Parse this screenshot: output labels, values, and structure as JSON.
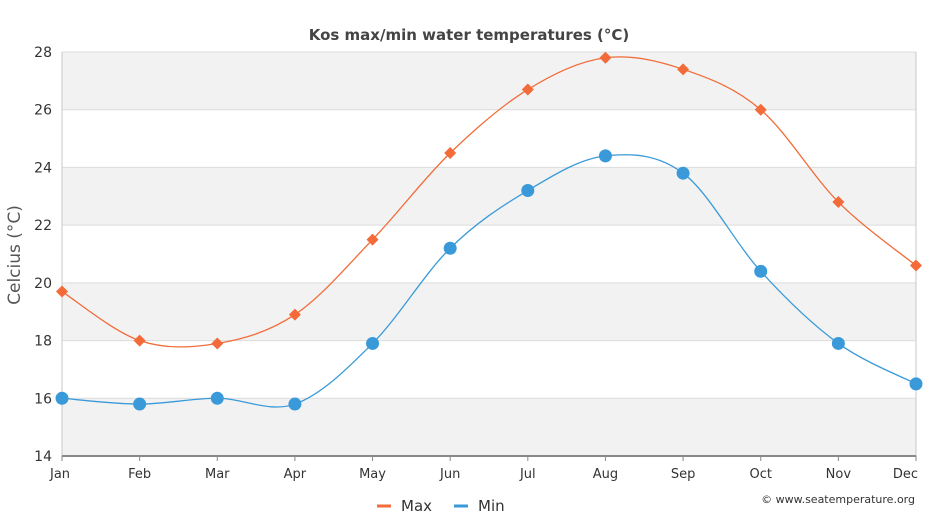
{
  "chart_data": {
    "type": "line",
    "title": "Kos max/min water temperatures (°C)",
    "xlabel": "",
    "ylabel": "Celcius (°C)",
    "categories": [
      "Jan",
      "Feb",
      "Mar",
      "Apr",
      "May",
      "Jun",
      "Jul",
      "Aug",
      "Sep",
      "Oct",
      "Nov",
      "Dec"
    ],
    "ylim": [
      14,
      28
    ],
    "yticks": [
      14,
      16,
      18,
      20,
      22,
      24,
      26,
      28
    ],
    "grid": true,
    "legend_position": "bottom-center",
    "series": [
      {
        "name": "Max",
        "color": "#f26b38",
        "marker": "diamond",
        "values": [
          19.7,
          18.0,
          17.9,
          18.9,
          21.5,
          24.5,
          26.7,
          27.8,
          27.4,
          26.0,
          22.8,
          20.6
        ]
      },
      {
        "name": "Min",
        "color": "#3a9ad9",
        "marker": "circle",
        "values": [
          16.0,
          15.8,
          16.0,
          15.8,
          17.9,
          21.2,
          23.2,
          24.4,
          23.8,
          20.4,
          17.9,
          16.5
        ]
      }
    ],
    "credit": "© www.seatemperature.org"
  }
}
